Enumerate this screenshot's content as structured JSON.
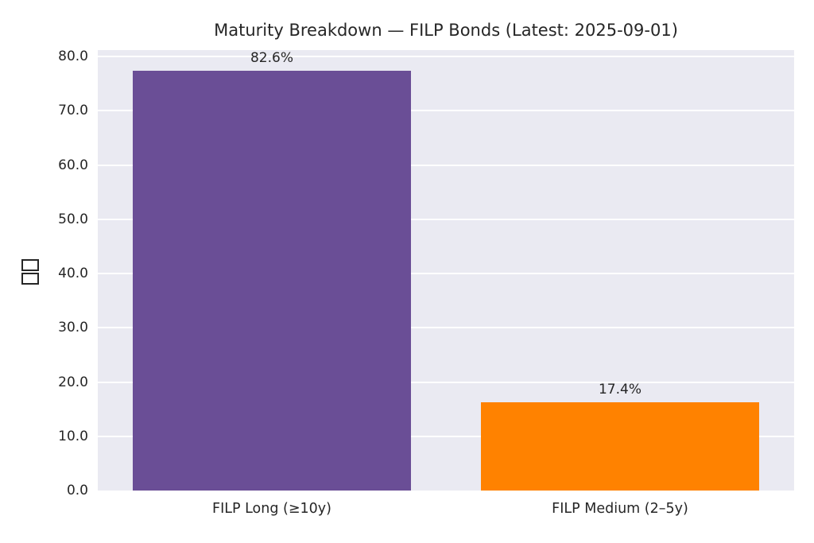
{
  "figure": {
    "background": "#ffffff",
    "plot_background": "#eaeaf2",
    "grid_color": "#ffffff",
    "text_color": "#262626"
  },
  "chart_data": {
    "type": "bar",
    "title": "Maturity Breakdown — FILP Bonds (Latest: 2025-09-01)",
    "categories": [
      "FILP Long (≥10y)",
      "FILP Medium (2–5y)"
    ],
    "values": [
      77.4,
      16.3
    ],
    "bar_labels": [
      "82.6%",
      "17.4%"
    ],
    "bar_colors": [
      "#6A4E96",
      "#FF8200"
    ],
    "xlabel": "",
    "ylabel": "□□",
    "ylabel_rendering": "two missing-glyph (tofu) boxes stacked vertically",
    "yticks": [
      0,
      10,
      20,
      30,
      40,
      50,
      60,
      70,
      80
    ],
    "ytick_labels": [
      "0.0",
      "10.0",
      "20.0",
      "30.0",
      "40.0",
      "50.0",
      "60.0",
      "70.0",
      "80.0"
    ],
    "ylim": [
      0,
      81.2
    ],
    "grid": "horizontal",
    "legend": "none",
    "bar_relative_width": 0.8
  }
}
